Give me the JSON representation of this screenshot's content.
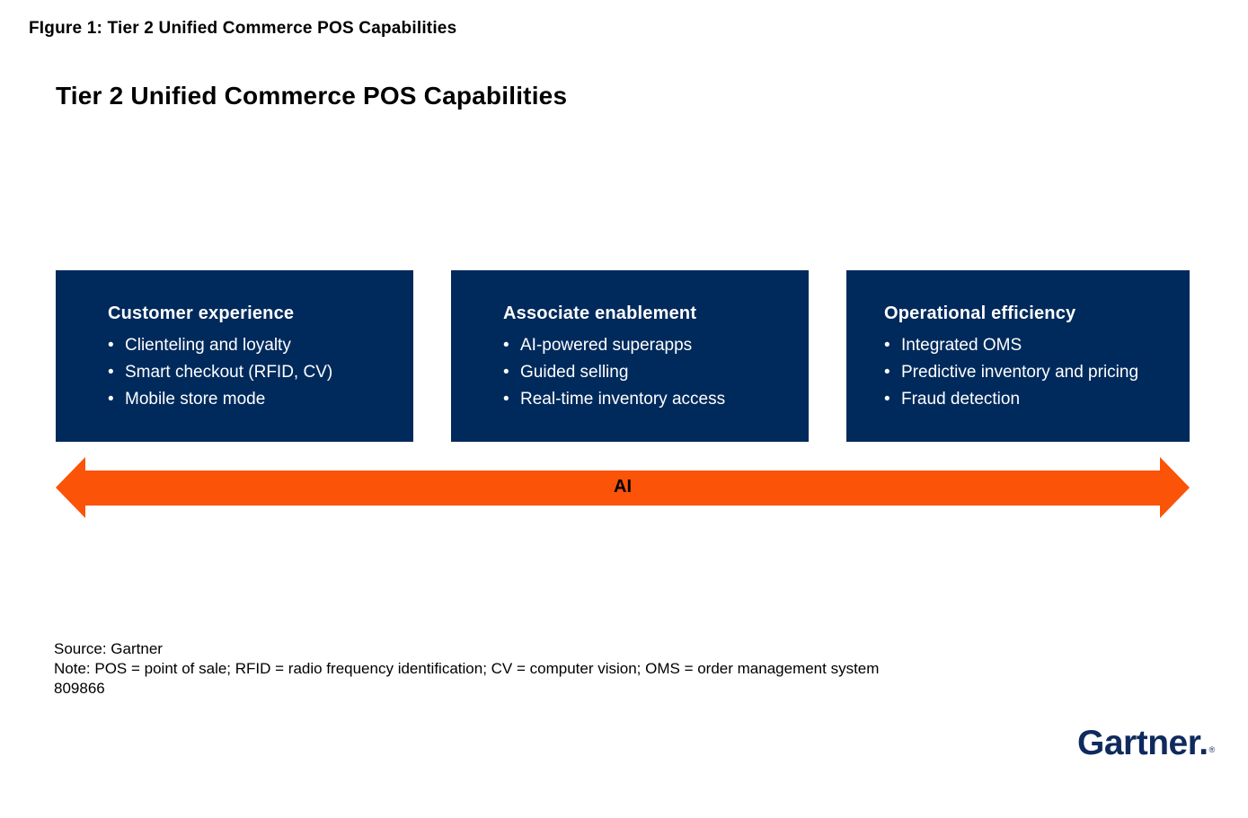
{
  "figure_label": "FIgure 1: Tier 2 Unified Commerce POS Capabilities",
  "title": "Tier 2 Unified Commerce POS Capabilities",
  "boxes": [
    {
      "title": "Customer experience",
      "items": [
        "Clienteling and loyalty",
        "Smart checkout (RFID, CV)",
        "Mobile store mode"
      ]
    },
    {
      "title": "Associate enablement",
      "items": [
        "AI-powered superapps",
        "Guided selling",
        "Real-time inventory access"
      ]
    },
    {
      "title": "Operational efficiency",
      "items": [
        "Integrated OMS",
        "Predictive inventory and pricing",
        "Fraud detection"
      ]
    }
  ],
  "arrow": {
    "label": "AI",
    "color": "#FB5307"
  },
  "footer": {
    "source": "Source: Gartner",
    "note": "Note: POS = point of sale; RFID = radio frequency identification; CV = computer vision; OMS = order management system",
    "doc_id": "809866"
  },
  "logo": {
    "text": "Gartner.",
    "registered_mark": "®",
    "color": "#0F2A5E"
  },
  "colors": {
    "box_navy": "#002A5C",
    "arrow_orange": "#FB5307",
    "box_text": "#FFFFFF",
    "background": "#FFFFFF",
    "body_text": "#000000"
  }
}
